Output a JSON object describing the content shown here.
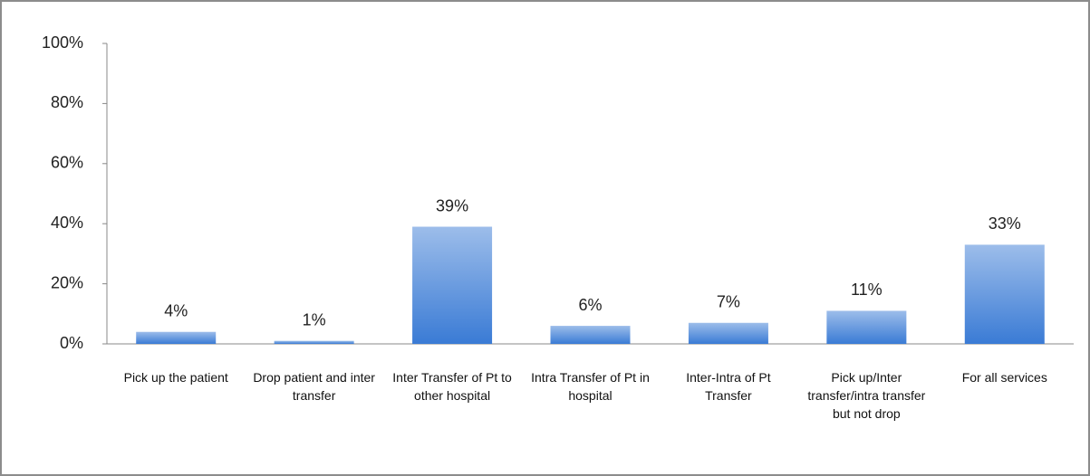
{
  "chart_data": {
    "type": "bar",
    "categories": [
      "Pick up the patient",
      "Drop patient and inter transfer",
      "Inter Transfer of Pt to other hospital",
      "Intra Transfer of Pt in hospital",
      "Inter-Intra of Pt Transfer",
      "Pick up/Inter transfer/intra transfer but not drop",
      "For all services"
    ],
    "values": [
      4,
      1,
      39,
      6,
      7,
      11,
      33
    ],
    "value_labels": [
      "4%",
      "1%",
      "39%",
      "6%",
      "7%",
      "11%",
      "33%"
    ],
    "color": "#3a7bd5",
    "ylim": [
      0,
      100
    ],
    "yticks": [
      {
        "value": 0,
        "label": "0%"
      },
      {
        "value": 20,
        "label": "20%"
      },
      {
        "value": 40,
        "label": "40%"
      },
      {
        "value": 60,
        "label": "60%"
      },
      {
        "value": 80,
        "label": "80%"
      },
      {
        "value": 100,
        "label": "100%"
      }
    ],
    "grid": false
  }
}
